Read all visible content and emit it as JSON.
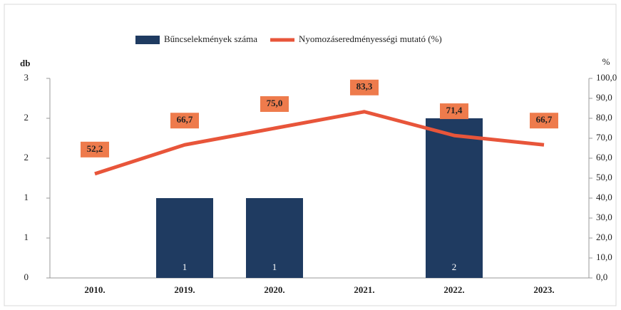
{
  "chart_data": {
    "type": "bar_line",
    "categories": [
      "2010.",
      "2019.",
      "2020.",
      "2021.",
      "2022.",
      "2023."
    ],
    "y_label": "db",
    "y2_label": "%",
    "series": [
      {
        "name": "Bűncselekmények száma",
        "color": "#1f3b61",
        "type": "bar",
        "values": [
          0,
          1,
          1,
          0,
          2,
          0
        ]
      },
      {
        "name": "Nyomozáseredményességi mutató (%)",
        "color": "#e8553a",
        "type": "line",
        "axis": "y2",
        "values": [
          52.2,
          66.7,
          75.0,
          83.3,
          71.4,
          66.7
        ],
        "value_labels": [
          "52,2",
          "66,7",
          "75,0",
          "83,3",
          "71,4",
          "66,7"
        ]
      }
    ],
    "ylim": [
      0,
      2.5
    ],
    "yticks": [
      0,
      {
        "value": 0.5,
        "label": "1"
      },
      1,
      {
        "value": 1.5,
        "label": "2"
      },
      2,
      {
        "value": 2.5,
        "label": "3"
      }
    ],
    "y2lim": [
      0,
      100
    ],
    "y2ticks": [
      {
        "value": 0,
        "label": "0,0"
      },
      {
        "value": 10,
        "label": "10,0"
      },
      {
        "value": 20,
        "label": "20,0"
      },
      {
        "value": 30,
        "label": "30,0"
      },
      {
        "value": 40,
        "label": "40,0"
      },
      {
        "value": 50,
        "label": "50,0"
      },
      {
        "value": 60,
        "label": "60,0"
      },
      {
        "value": 70,
        "label": "70,0"
      },
      {
        "value": 80,
        "label": "80,0"
      },
      {
        "value": 90,
        "label": "90,0"
      },
      {
        "value": 100,
        "label": "100,0"
      }
    ],
    "legend": "top"
  }
}
